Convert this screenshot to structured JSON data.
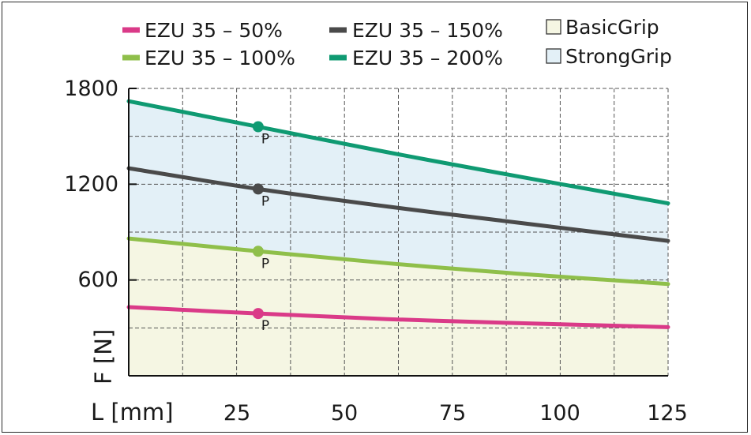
{
  "colors": {
    "pink": "#da3a88",
    "dark": "#4a4a4a",
    "lightgreen": "#8fbf4a",
    "teal": "#0f9a72",
    "basicgrip_fill": "#f5f6e3",
    "stronggrip_fill": "#e3f0f7",
    "grid": "#555555",
    "axis": "#111111"
  },
  "legend": {
    "s1": "EZU 35 – 50%",
    "s2": "EZU 35 – 150%",
    "s3": "EZU 35 – 100%",
    "s4": "EZU 35 – 200%",
    "basic": "BasicGrip",
    "strong": "StrongGrip"
  },
  "axis": {
    "x_label": "L [mm]",
    "y_label": "F [N]",
    "y_ticks": [
      "1800",
      "1200",
      "600"
    ],
    "x_ticks": [
      "25",
      "50",
      "75",
      "100",
      "125"
    ]
  },
  "point_label": "P",
  "chart_data": {
    "type": "line",
    "xlabel": "L [mm]",
    "ylabel": "F [N]",
    "xlim": [
      0,
      125
    ],
    "ylim": [
      0,
      1800
    ],
    "grid": true,
    "legend_position": "top",
    "series": [
      {
        "name": "EZU 35 – 50%",
        "color": "#da3a88",
        "x": [
          0,
          30,
          60,
          90,
          125
        ],
        "values": [
          430,
          390,
          355,
          330,
          305
        ],
        "marker_x": 30,
        "marker_y": 390,
        "marker_label": "P"
      },
      {
        "name": "EZU 35 – 100%",
        "color": "#8fbf4a",
        "x": [
          0,
          30,
          60,
          90,
          125
        ],
        "values": [
          860,
          780,
          705,
          640,
          575
        ],
        "marker_x": 30,
        "marker_y": 780,
        "marker_label": "P"
      },
      {
        "name": "EZU 35 – 150%",
        "color": "#4a4a4a",
        "x": [
          0,
          30,
          60,
          90,
          125
        ],
        "values": [
          1300,
          1170,
          1060,
          960,
          845
        ],
        "marker_x": 30,
        "marker_y": 1170,
        "marker_label": "P"
      },
      {
        "name": "EZU 35 – 200%",
        "color": "#0f9a72",
        "x": [
          0,
          30,
          60,
          90,
          125
        ],
        "values": [
          1720,
          1560,
          1400,
          1250,
          1080
        ],
        "marker_x": 30,
        "marker_y": 1560,
        "marker_label": "P"
      }
    ],
    "regions": [
      {
        "name": "BasicGrip",
        "lower": "axis",
        "upper": "EZU 35 – 100%"
      },
      {
        "name": "StrongGrip",
        "lower": "EZU 35 – 100%",
        "upper": "EZU 35 – 200%"
      }
    ]
  }
}
